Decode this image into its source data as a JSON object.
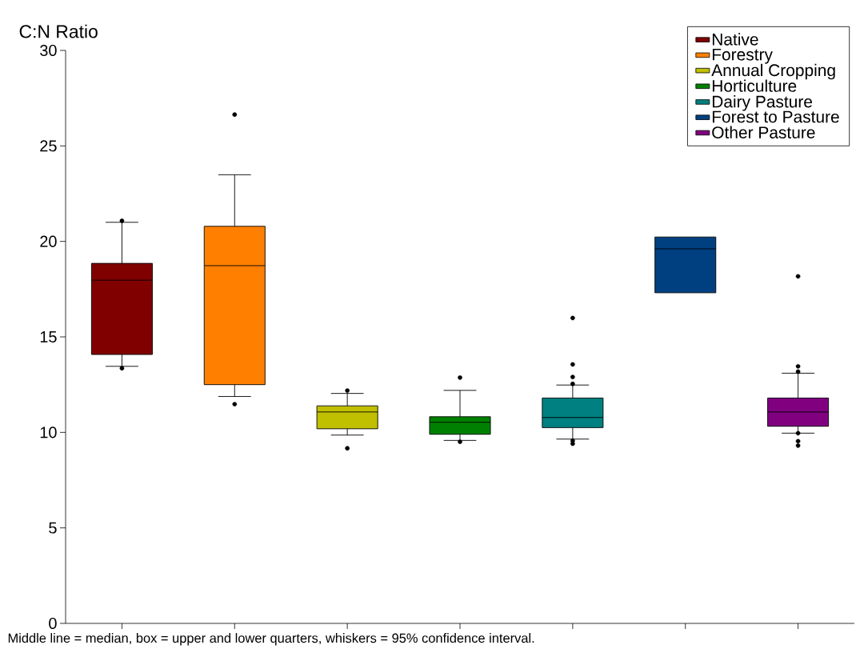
{
  "chart_data": {
    "type": "box",
    "ylabel": "C:N Ratio",
    "annotations": [
      "Middle line = median, box = upper and lower quarters, whiskers = 95% confidence interval."
    ],
    "categories": [
      null,
      null,
      null,
      null,
      null,
      null,
      null
    ],
    "ylim": [
      0,
      30
    ],
    "yticks": [
      0,
      5,
      10,
      15,
      20,
      25,
      30
    ],
    "legend": "top right",
    "series": [
      {
        "name": "Native",
        "color": "#800000",
        "boxes": [
          {
            "low": 13.46,
            "q1": 14.08,
            "median": 17.97,
            "q3": 18.85,
            "high": 21.0,
            "outliers": [
              21.08,
              13.36
            ]
          },
          null,
          null,
          null,
          null,
          null,
          null
        ]
      },
      {
        "name": "Forestry",
        "color": "#ff8000",
        "boxes": [
          null,
          {
            "low": 11.88,
            "q1": 12.5,
            "median": 18.73,
            "q3": 20.79,
            "high": 23.49,
            "outliers": [
              26.64,
              11.48
            ]
          },
          null,
          null,
          null,
          null,
          null
        ]
      },
      {
        "name": "Annual Cropping",
        "color": "#c0c000",
        "boxes": [
          null,
          null,
          {
            "low": 9.86,
            "q1": 10.19,
            "median": 11.07,
            "q3": 11.39,
            "high": 12.04,
            "outliers": [
              12.19,
              9.17
            ]
          },
          null,
          null,
          null,
          null
        ]
      },
      {
        "name": "Horticulture",
        "color": "#008000",
        "boxes": [
          null,
          null,
          null,
          {
            "low": 9.58,
            "q1": 9.9,
            "median": 10.53,
            "q3": 10.82,
            "high": 12.2,
            "outliers": [
              12.87,
              9.51
            ]
          },
          null,
          null,
          null
        ]
      },
      {
        "name": "Dairy Pasture",
        "color": "#008080",
        "boxes": [
          null,
          null,
          null,
          null,
          {
            "low": 9.65,
            "q1": 10.25,
            "median": 10.78,
            "q3": 11.8,
            "high": 12.48,
            "outliers": [
              15.99,
              13.56,
              12.9,
              12.54,
              9.56,
              9.41
            ]
          },
          null,
          null
        ]
      },
      {
        "name": "Forest to Pasture",
        "color": "#004080",
        "boxes": [
          null,
          null,
          null,
          null,
          null,
          {
            "low": null,
            "q1": 17.31,
            "median": 19.61,
            "q3": 20.23,
            "high": null
          },
          null
        ]
      },
      {
        "name": "Other Pasture",
        "color": "#800080",
        "boxes": [
          null,
          null,
          null,
          null,
          null,
          null,
          {
            "low": 9.96,
            "q1": 10.32,
            "median": 11.07,
            "q3": 11.8,
            "high": 13.1,
            "outliers": [
              18.17,
              13.46,
              13.18,
              9.96,
              9.54,
              9.31
            ]
          }
        ]
      }
    ]
  }
}
